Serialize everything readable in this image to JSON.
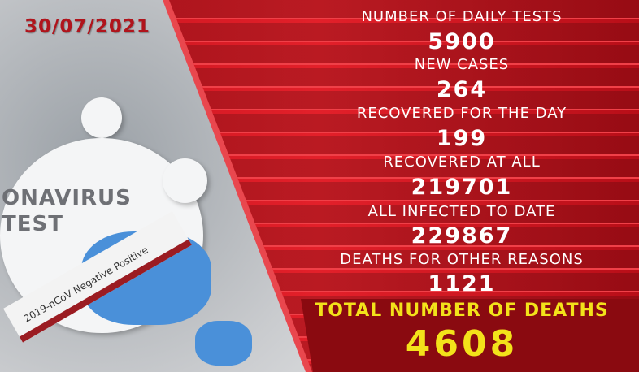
{
  "date": "30/07/2021",
  "image_text": {
    "card": "ONAVIRUS\nTEST",
    "tube": "2019-nCoV  Negative  Positive"
  },
  "stats": [
    {
      "label": "Number of daily tests",
      "value": "5900"
    },
    {
      "label": "New cases",
      "value": "264"
    },
    {
      "label": "Recovered for the day",
      "value": "199"
    },
    {
      "label": "Recovered at all",
      "value": "219701"
    },
    {
      "label": "All infected to date",
      "value": "229867"
    },
    {
      "label": "Deaths for other reasons",
      "value": "1121"
    }
  ],
  "total": {
    "label": "Total number of deaths",
    "value": "4608"
  },
  "colors": {
    "panel": "#d81a24",
    "highlight": "#f3e21a",
    "date": "#b0141c"
  }
}
